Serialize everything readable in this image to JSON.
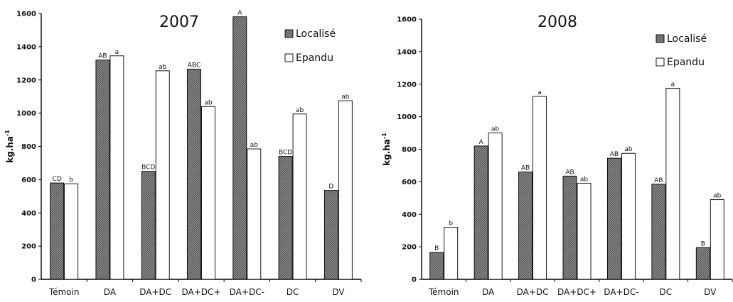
{
  "chart_data": [
    {
      "type": "bar",
      "title": "2007",
      "ylabel": "kg.ha-1",
      "ylabel_base": "kg.ha",
      "ylabel_exp": "-1",
      "ylim": [
        0,
        1600
      ],
      "yticks": [
        0,
        200,
        400,
        600,
        800,
        1000,
        1200,
        1400,
        1600
      ],
      "categories": [
        "Témoin",
        "DA",
        "DA+DC",
        "DA+DC+",
        "DA+DC-",
        "DC",
        "DV"
      ],
      "legend_position": "top-right",
      "series": [
        {
          "name": "Localisé",
          "color": "#7a7a7a",
          "pattern": "hatched",
          "values": [
            580,
            1320,
            650,
            1265,
            1580,
            740,
            535
          ],
          "labels": [
            "CD",
            "AB",
            "BCD",
            "ABC",
            "A",
            "BCD",
            "D"
          ]
        },
        {
          "name": "Epandu",
          "color": "#ffffff",
          "pattern": "none",
          "values": [
            575,
            1345,
            1255,
            1040,
            785,
            995,
            1075
          ],
          "labels": [
            "b",
            "a",
            "ab",
            "ab",
            "ab",
            "ab",
            "ab"
          ]
        }
      ]
    },
    {
      "type": "bar",
      "title": "2008",
      "ylabel": "kg.ha-1",
      "ylabel_base": "kg.ha",
      "ylabel_exp": "-1",
      "ylim": [
        0,
        1600
      ],
      "yticks": [
        0,
        200,
        400,
        600,
        800,
        1000,
        1200,
        1400,
        1600
      ],
      "categories": [
        "Témoin",
        "DA",
        "DA+DC",
        "DA+DC+",
        "DA+DC-",
        "DC",
        "DV"
      ],
      "legend_position": "top-right",
      "series": [
        {
          "name": "Localisé",
          "color": "#7a7a7a",
          "pattern": "hatched",
          "values": [
            165,
            820,
            660,
            635,
            745,
            585,
            195
          ],
          "labels": [
            "B",
            "A",
            "AB",
            "AB",
            "AB",
            "AB",
            "B"
          ]
        },
        {
          "name": "Epandu",
          "color": "#ffffff",
          "pattern": "none",
          "values": [
            320,
            900,
            1125,
            590,
            775,
            1175,
            490
          ],
          "labels": [
            "b",
            "ab",
            "a",
            "ab",
            "ab",
            "a",
            "ab"
          ]
        }
      ]
    }
  ]
}
